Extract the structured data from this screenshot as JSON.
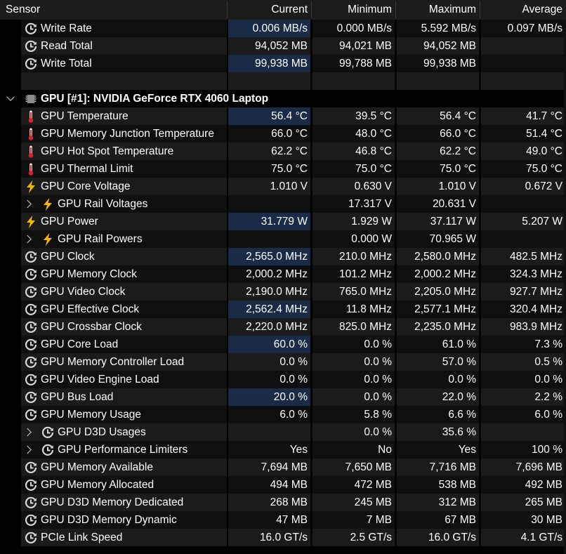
{
  "columns": {
    "sensor": "Sensor",
    "current": "Current",
    "minimum": "Minimum",
    "maximum": "Maximum",
    "average": "Average"
  },
  "rows": [
    {
      "type": "sensor",
      "icon": "clock-icon",
      "indent": 0,
      "label": "Write Rate",
      "current": "0.006 MB/s",
      "minimum": "0.000 MB/s",
      "maximum": "5.592 MB/s",
      "average": "0.097 MB/s",
      "hl": true
    },
    {
      "type": "sensor",
      "icon": "clock-icon",
      "indent": 0,
      "label": "Read Total",
      "current": "94,052 MB",
      "minimum": "94,021 MB",
      "maximum": "94,052 MB",
      "average": "",
      "hl": false
    },
    {
      "type": "sensor",
      "icon": "clock-icon",
      "indent": 0,
      "label": "Write Total",
      "current": "99,938 MB",
      "minimum": "99,788 MB",
      "maximum": "99,938 MB",
      "average": "",
      "hl": true
    },
    {
      "type": "blank"
    },
    {
      "type": "section",
      "icon": "chip-icon",
      "label": "GPU [#1]: NVIDIA GeForce RTX 4060 Laptop"
    },
    {
      "type": "sensor",
      "icon": "thermometer-icon",
      "indent": 0,
      "label": "GPU Temperature",
      "current": "56.4 °C",
      "minimum": "39.5 °C",
      "maximum": "56.4 °C",
      "average": "41.7 °C",
      "hl": true
    },
    {
      "type": "sensor",
      "icon": "thermometer-icon",
      "indent": 0,
      "label": "GPU Memory Junction Temperature",
      "current": "66.0 °C",
      "minimum": "48.0 °C",
      "maximum": "66.0 °C",
      "average": "51.4 °C",
      "hl": false
    },
    {
      "type": "sensor",
      "icon": "thermometer-icon",
      "indent": 0,
      "label": "GPU Hot Spot Temperature",
      "current": "62.2 °C",
      "minimum": "46.8 °C",
      "maximum": "62.2 °C",
      "average": "49.0 °C",
      "hl": false
    },
    {
      "type": "sensor",
      "icon": "thermometer-icon",
      "indent": 0,
      "label": "GPU Thermal Limit",
      "current": "75.0 °C",
      "minimum": "75.0 °C",
      "maximum": "75.0 °C",
      "average": "75.0 °C",
      "hl": false
    },
    {
      "type": "sensor",
      "icon": "lightning-icon",
      "indent": 0,
      "label": "GPU Core Voltage",
      "current": "1.010 V",
      "minimum": "0.630 V",
      "maximum": "1.010 V",
      "average": "0.672 V",
      "hl": false
    },
    {
      "type": "sensor",
      "icon": "lightning-icon",
      "indent": 1,
      "expand": true,
      "label": "GPU Rail Voltages",
      "current": "",
      "minimum": "17.317 V",
      "maximum": "20.631 V",
      "average": "",
      "hl": false
    },
    {
      "type": "sensor",
      "icon": "lightning-icon",
      "indent": 0,
      "label": "GPU Power",
      "current": "31.779 W",
      "minimum": "1.929 W",
      "maximum": "37.117 W",
      "average": "5.207 W",
      "hl": true
    },
    {
      "type": "sensor",
      "icon": "lightning-icon",
      "indent": 1,
      "expand": true,
      "label": "GPU Rail Powers",
      "current": "",
      "minimum": "0.000 W",
      "maximum": "70.965 W",
      "average": "",
      "hl": false
    },
    {
      "type": "sensor",
      "icon": "clock-icon",
      "indent": 0,
      "label": "GPU Clock",
      "current": "2,565.0 MHz",
      "minimum": "210.0 MHz",
      "maximum": "2,580.0 MHz",
      "average": "482.5 MHz",
      "hl": true
    },
    {
      "type": "sensor",
      "icon": "clock-icon",
      "indent": 0,
      "label": "GPU Memory Clock",
      "current": "2,000.2 MHz",
      "minimum": "101.2 MHz",
      "maximum": "2,000.2 MHz",
      "average": "324.3 MHz",
      "hl": false
    },
    {
      "type": "sensor",
      "icon": "clock-icon",
      "indent": 0,
      "label": "GPU Video Clock",
      "current": "2,190.0 MHz",
      "minimum": "765.0 MHz",
      "maximum": "2,205.0 MHz",
      "average": "927.7 MHz",
      "hl": false
    },
    {
      "type": "sensor",
      "icon": "clock-icon",
      "indent": 0,
      "label": "GPU Effective Clock",
      "current": "2,562.4 MHz",
      "minimum": "11.8 MHz",
      "maximum": "2,577.1 MHz",
      "average": "320.4 MHz",
      "hl": true
    },
    {
      "type": "sensor",
      "icon": "clock-icon",
      "indent": 0,
      "label": "GPU Crossbar Clock",
      "current": "2,220.0 MHz",
      "minimum": "825.0 MHz",
      "maximum": "2,235.0 MHz",
      "average": "983.9 MHz",
      "hl": false
    },
    {
      "type": "sensor",
      "icon": "clock-icon",
      "indent": 0,
      "label": "GPU Core Load",
      "current": "60.0 %",
      "minimum": "0.0 %",
      "maximum": "61.0 %",
      "average": "7.3 %",
      "hl": true
    },
    {
      "type": "sensor",
      "icon": "clock-icon",
      "indent": 0,
      "label": "GPU Memory Controller Load",
      "current": "0.0 %",
      "minimum": "0.0 %",
      "maximum": "57.0 %",
      "average": "0.5 %",
      "hl": false
    },
    {
      "type": "sensor",
      "icon": "clock-icon",
      "indent": 0,
      "label": "GPU Video Engine Load",
      "current": "0.0 %",
      "minimum": "0.0 %",
      "maximum": "0.0 %",
      "average": "0.0 %",
      "hl": false
    },
    {
      "type": "sensor",
      "icon": "clock-icon",
      "indent": 0,
      "label": "GPU Bus Load",
      "current": "20.0 %",
      "minimum": "0.0 %",
      "maximum": "22.0 %",
      "average": "2.2 %",
      "hl": true
    },
    {
      "type": "sensor",
      "icon": "clock-icon",
      "indent": 0,
      "label": "GPU Memory Usage",
      "current": "6.0 %",
      "minimum": "5.8 %",
      "maximum": "6.6 %",
      "average": "6.0 %",
      "hl": false
    },
    {
      "type": "sensor",
      "icon": "clock-icon",
      "indent": 1,
      "expand": true,
      "label": "GPU D3D Usages",
      "current": "",
      "minimum": "0.0 %",
      "maximum": "35.6 %",
      "average": "",
      "hl": false
    },
    {
      "type": "sensor",
      "icon": "clock-icon",
      "indent": 1,
      "expand": true,
      "label": "GPU Performance Limiters",
      "current": "Yes",
      "minimum": "No",
      "maximum": "Yes",
      "average": "100 %",
      "hl": false
    },
    {
      "type": "sensor",
      "icon": "clock-icon",
      "indent": 0,
      "label": "GPU Memory Available",
      "current": "7,694 MB",
      "minimum": "7,650 MB",
      "maximum": "7,716 MB",
      "average": "7,696 MB",
      "hl": false
    },
    {
      "type": "sensor",
      "icon": "clock-icon",
      "indent": 0,
      "label": "GPU Memory Allocated",
      "current": "494 MB",
      "minimum": "472 MB",
      "maximum": "538 MB",
      "average": "492 MB",
      "hl": false
    },
    {
      "type": "sensor",
      "icon": "clock-icon",
      "indent": 0,
      "label": "GPU D3D Memory Dedicated",
      "current": "268 MB",
      "minimum": "245 MB",
      "maximum": "312 MB",
      "average": "265 MB",
      "hl": false
    },
    {
      "type": "sensor",
      "icon": "clock-icon",
      "indent": 0,
      "label": "GPU D3D Memory Dynamic",
      "current": "47 MB",
      "minimum": "7 MB",
      "maximum": "67 MB",
      "average": "30 MB",
      "hl": false
    },
    {
      "type": "sensor",
      "icon": "clock-icon",
      "indent": 0,
      "label": "PCIe Link Speed",
      "current": "16.0 GT/s",
      "minimum": "2.5 GT/s",
      "maximum": "16.0 GT/s",
      "average": "4.1 GT/s",
      "hl": false
    }
  ],
  "colors": {
    "highlight": "#1a2b47",
    "thermometer": "#d8202a",
    "lightning": "#f5b800",
    "clock": "#d9d9d9"
  }
}
